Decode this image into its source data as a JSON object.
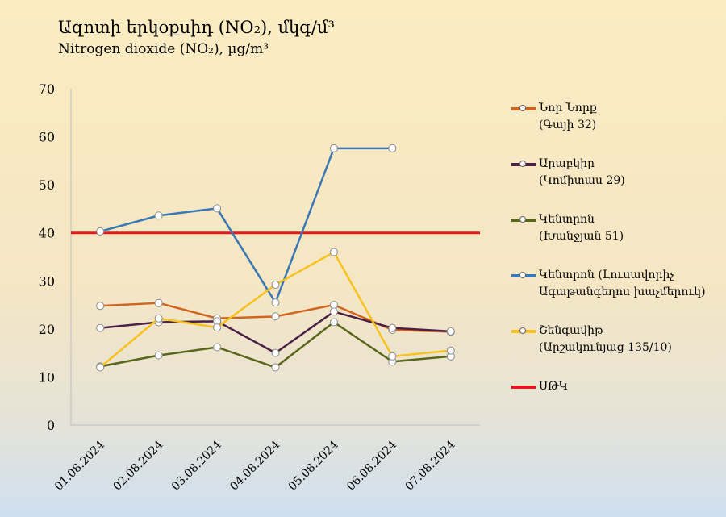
{
  "chart_data": {
    "type": "line",
    "title": "Ազոտի  երկօքսիդ (NO₂), մկգ/մ³",
    "subtitle": "Nitrogen  dioxide (NO₂), µg/m³",
    "categories": [
      "01.08.2024",
      "02.08.2024",
      "03.08.2024",
      "04.08.2024",
      "05.08.2024",
      "06.08.2024",
      "07.08.2024"
    ],
    "ylim": [
      0,
      70
    ],
    "yticks": [
      0,
      10,
      20,
      30,
      40,
      50,
      60,
      70
    ],
    "grid": false,
    "legend_position": "right",
    "series": [
      {
        "name": "Նոր Նորք",
        "name_sub": "(Գայի 32)",
        "color": "#d1651f",
        "values": [
          24.8,
          25.4,
          22.2,
          22.6,
          25.0,
          19.8,
          19.4
        ]
      },
      {
        "name": "Արաբկիր",
        "name_sub": "(Կոմիտաս 29)",
        "color": "#4a2047",
        "values": [
          20.2,
          21.4,
          21.6,
          15.0,
          23.6,
          20.2,
          19.5
        ]
      },
      {
        "name": "Կենտրոն",
        "name_sub": "(Խանջյան 51)",
        "color": "#58661b",
        "values": [
          12.2,
          14.5,
          16.2,
          12.0,
          21.4,
          13.2,
          14.3
        ]
      },
      {
        "name": "Կենտրոն (Լուսավորիչ",
        "name_sub": "Ագաթանգեղոս խաչմերուկ)",
        "color": "#3a78b5",
        "values": [
          40.3,
          43.6,
          45.1,
          25.5,
          57.6,
          57.6,
          null
        ]
      },
      {
        "name": "Շենգավիթ",
        "name_sub": "(Արշակունյաց 135/10)",
        "color": "#f7c21c",
        "values": [
          12.0,
          22.2,
          20.3,
          29.2,
          36.0,
          14.3,
          15.5
        ]
      }
    ],
    "reference_line": {
      "name": "ՍԹԿ",
      "value": 40,
      "color": "#e3191b"
    }
  }
}
